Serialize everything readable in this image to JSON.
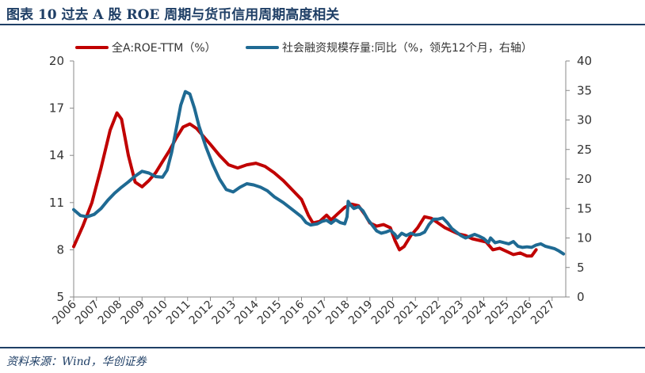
{
  "title": "图表 10   过去 A 股 ROE 周期与货币信用周期高度相关",
  "source": "资料来源：Wind，华创证券",
  "colors": {
    "roe": "#c00000",
    "tsf": "#1f6a93",
    "axis": "#888888",
    "text": "#333333",
    "title": "#1f3f66"
  },
  "chart_data": {
    "type": "line",
    "title": "",
    "xlabel": "",
    "ylabel_left": "",
    "ylabel_right": "",
    "x_ticks": [
      "2006",
      "2007",
      "2008",
      "2009",
      "2010",
      "2011",
      "2012",
      "2013",
      "2014",
      "2015",
      "2016",
      "2017",
      "2018",
      "2019",
      "2020",
      "2021",
      "2022",
      "2023",
      "2024",
      "2025",
      "2026",
      "2027"
    ],
    "xlim": [
      2006,
      2027.6
    ],
    "ylim_left": [
      5,
      20
    ],
    "y_ticks_left": [
      5,
      8,
      11,
      14,
      17,
      20
    ],
    "ylim_right": [
      0,
      40
    ],
    "y_ticks_right": [
      0,
      5,
      10,
      15,
      20,
      25,
      30,
      35,
      40
    ],
    "legend_position": "top",
    "grid": false,
    "series": [
      {
        "name": "全A:ROE-TTM（%）",
        "axis": "left",
        "points": [
          [
            2006.0,
            8.2
          ],
          [
            2006.4,
            9.5
          ],
          [
            2006.8,
            11.0
          ],
          [
            2007.2,
            13.2
          ],
          [
            2007.6,
            15.6
          ],
          [
            2007.9,
            16.7
          ],
          [
            2008.1,
            16.3
          ],
          [
            2008.4,
            14.0
          ],
          [
            2008.7,
            12.3
          ],
          [
            2009.0,
            12.0
          ],
          [
            2009.3,
            12.4
          ],
          [
            2009.6,
            12.9
          ],
          [
            2009.9,
            13.6
          ],
          [
            2010.2,
            14.3
          ],
          [
            2010.5,
            15.1
          ],
          [
            2010.8,
            15.8
          ],
          [
            2011.1,
            16.0
          ],
          [
            2011.4,
            15.7
          ],
          [
            2011.7,
            15.2
          ],
          [
            2012.0,
            14.7
          ],
          [
            2012.4,
            14.0
          ],
          [
            2012.8,
            13.4
          ],
          [
            2013.2,
            13.2
          ],
          [
            2013.6,
            13.4
          ],
          [
            2014.0,
            13.5
          ],
          [
            2014.4,
            13.3
          ],
          [
            2014.8,
            12.9
          ],
          [
            2015.2,
            12.4
          ],
          [
            2015.6,
            11.8
          ],
          [
            2016.0,
            11.2
          ],
          [
            2016.3,
            10.2
          ],
          [
            2016.5,
            9.7
          ],
          [
            2016.8,
            9.8
          ],
          [
            2017.1,
            10.2
          ],
          [
            2017.3,
            9.9
          ],
          [
            2017.6,
            10.3
          ],
          [
            2017.9,
            10.7
          ],
          [
            2018.2,
            10.9
          ],
          [
            2018.5,
            10.8
          ],
          [
            2018.8,
            10.2
          ],
          [
            2019.0,
            9.7
          ],
          [
            2019.3,
            9.5
          ],
          [
            2019.6,
            9.6
          ],
          [
            2019.9,
            9.4
          ],
          [
            2020.1,
            8.6
          ],
          [
            2020.3,
            8.0
          ],
          [
            2020.5,
            8.2
          ],
          [
            2020.8,
            8.9
          ],
          [
            2021.1,
            9.4
          ],
          [
            2021.4,
            10.1
          ],
          [
            2021.7,
            10.0
          ],
          [
            2022.0,
            9.7
          ],
          [
            2022.3,
            9.4
          ],
          [
            2022.6,
            9.2
          ],
          [
            2022.9,
            9.0
          ],
          [
            2023.2,
            8.9
          ],
          [
            2023.5,
            8.7
          ],
          [
            2023.8,
            8.6
          ],
          [
            2024.1,
            8.5
          ],
          [
            2024.4,
            8.0
          ],
          [
            2024.7,
            8.1
          ],
          [
            2025.0,
            7.9
          ],
          [
            2025.3,
            7.7
          ],
          [
            2025.6,
            7.8
          ],
          [
            2025.9,
            7.6
          ],
          [
            2026.1,
            7.6
          ],
          [
            2026.3,
            8.0
          ]
        ]
      },
      {
        "name": "社会融资规模存量:同比（%，领先12个月，右轴）",
        "axis": "right",
        "points": [
          [
            2006.0,
            14.8
          ],
          [
            2006.3,
            13.8
          ],
          [
            2006.6,
            13.6
          ],
          [
            2006.9,
            14.0
          ],
          [
            2007.2,
            15.0
          ],
          [
            2007.5,
            16.4
          ],
          [
            2007.8,
            17.6
          ],
          [
            2008.1,
            18.6
          ],
          [
            2008.4,
            19.5
          ],
          [
            2008.7,
            20.5
          ],
          [
            2009.0,
            21.3
          ],
          [
            2009.3,
            21.0
          ],
          [
            2009.6,
            20.4
          ],
          [
            2009.9,
            20.3
          ],
          [
            2010.1,
            21.5
          ],
          [
            2010.3,
            24.5
          ],
          [
            2010.5,
            28.5
          ],
          [
            2010.7,
            32.5
          ],
          [
            2010.9,
            34.8
          ],
          [
            2011.1,
            34.4
          ],
          [
            2011.3,
            32.0
          ],
          [
            2011.5,
            29.0
          ],
          [
            2011.8,
            25.5
          ],
          [
            2012.1,
            22.5
          ],
          [
            2012.4,
            20.0
          ],
          [
            2012.7,
            18.2
          ],
          [
            2013.0,
            17.8
          ],
          [
            2013.3,
            18.6
          ],
          [
            2013.6,
            19.2
          ],
          [
            2013.9,
            19.0
          ],
          [
            2014.2,
            18.6
          ],
          [
            2014.5,
            18.0
          ],
          [
            2014.8,
            17.0
          ],
          [
            2015.2,
            16.0
          ],
          [
            2015.6,
            14.8
          ],
          [
            2016.0,
            13.6
          ],
          [
            2016.2,
            12.6
          ],
          [
            2016.4,
            12.2
          ],
          [
            2016.7,
            12.4
          ],
          [
            2016.9,
            12.8
          ],
          [
            2017.1,
            13.0
          ],
          [
            2017.3,
            12.5
          ],
          [
            2017.5,
            13.1
          ],
          [
            2017.7,
            12.6
          ],
          [
            2017.9,
            12.4
          ],
          [
            2018.0,
            13.6
          ],
          [
            2018.05,
            16.2
          ],
          [
            2018.15,
            15.6
          ],
          [
            2018.3,
            15.0
          ],
          [
            2018.5,
            15.3
          ],
          [
            2018.7,
            14.6
          ],
          [
            2018.9,
            13.2
          ],
          [
            2019.1,
            12.2
          ],
          [
            2019.3,
            11.2
          ],
          [
            2019.5,
            10.8
          ],
          [
            2019.7,
            11.0
          ],
          [
            2019.9,
            11.3
          ],
          [
            2020.1,
            10.6
          ],
          [
            2020.2,
            10.0
          ],
          [
            2020.4,
            10.8
          ],
          [
            2020.6,
            10.4
          ],
          [
            2020.8,
            10.8
          ],
          [
            2021.0,
            10.5
          ],
          [
            2021.2,
            10.6
          ],
          [
            2021.4,
            11.0
          ],
          [
            2021.6,
            12.3
          ],
          [
            2021.8,
            13.2
          ],
          [
            2022.0,
            13.2
          ],
          [
            2022.2,
            13.4
          ],
          [
            2022.4,
            12.6
          ],
          [
            2022.6,
            11.6
          ],
          [
            2022.8,
            11.0
          ],
          [
            2023.0,
            10.4
          ],
          [
            2023.2,
            10.0
          ],
          [
            2023.4,
            10.3
          ],
          [
            2023.6,
            10.6
          ],
          [
            2023.8,
            10.3
          ],
          [
            2024.0,
            9.9
          ],
          [
            2024.2,
            9.2
          ],
          [
            2024.3,
            10.0
          ],
          [
            2024.5,
            9.2
          ],
          [
            2024.7,
            9.4
          ],
          [
            2024.9,
            9.2
          ],
          [
            2025.1,
            9.0
          ],
          [
            2025.3,
            9.4
          ],
          [
            2025.5,
            8.6
          ],
          [
            2025.7,
            8.4
          ],
          [
            2025.9,
            8.5
          ],
          [
            2026.1,
            8.4
          ],
          [
            2026.3,
            8.8
          ],
          [
            2026.5,
            9.0
          ],
          [
            2026.7,
            8.6
          ],
          [
            2026.9,
            8.4
          ],
          [
            2027.1,
            8.2
          ],
          [
            2027.3,
            7.8
          ],
          [
            2027.5,
            7.3
          ]
        ]
      }
    ]
  }
}
